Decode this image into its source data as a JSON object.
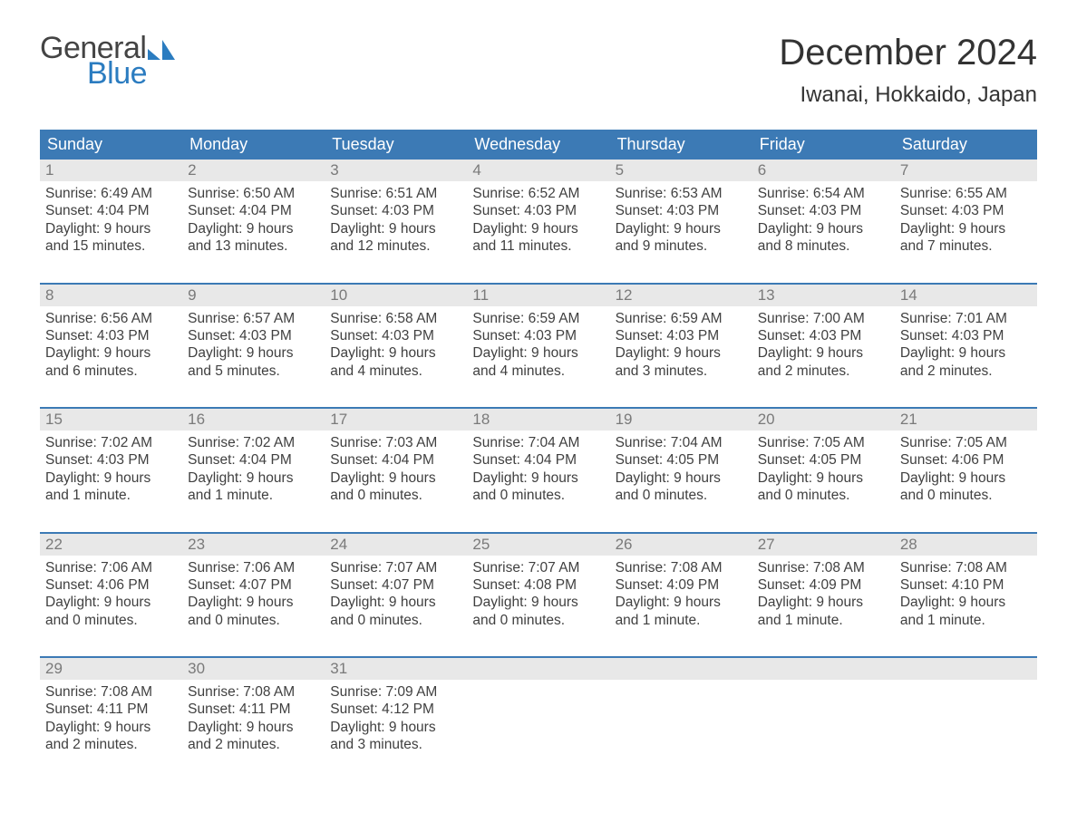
{
  "brand": {
    "word1": "General",
    "word2": "Blue",
    "shape_color": "#2b7cc0",
    "text_gray": "#444444"
  },
  "title": "December 2024",
  "location": "Iwanai, Hokkaido, Japan",
  "colors": {
    "header_bg": "#3c7ab5",
    "daynum_bg": "#e8e8e8",
    "daynum_text": "#7a7a7a",
    "body_text": "#404040",
    "week_border": "#3c7ab5"
  },
  "weekdays": [
    "Sunday",
    "Monday",
    "Tuesday",
    "Wednesday",
    "Thursday",
    "Friday",
    "Saturday"
  ],
  "weeks": [
    [
      {
        "num": "1",
        "sunrise": "Sunrise: 6:49 AM",
        "sunset": "Sunset: 4:04 PM",
        "day1": "Daylight: 9 hours",
        "day2": "and 15 minutes."
      },
      {
        "num": "2",
        "sunrise": "Sunrise: 6:50 AM",
        "sunset": "Sunset: 4:04 PM",
        "day1": "Daylight: 9 hours",
        "day2": "and 13 minutes."
      },
      {
        "num": "3",
        "sunrise": "Sunrise: 6:51 AM",
        "sunset": "Sunset: 4:03 PM",
        "day1": "Daylight: 9 hours",
        "day2": "and 12 minutes."
      },
      {
        "num": "4",
        "sunrise": "Sunrise: 6:52 AM",
        "sunset": "Sunset: 4:03 PM",
        "day1": "Daylight: 9 hours",
        "day2": "and 11 minutes."
      },
      {
        "num": "5",
        "sunrise": "Sunrise: 6:53 AM",
        "sunset": "Sunset: 4:03 PM",
        "day1": "Daylight: 9 hours",
        "day2": "and 9 minutes."
      },
      {
        "num": "6",
        "sunrise": "Sunrise: 6:54 AM",
        "sunset": "Sunset: 4:03 PM",
        "day1": "Daylight: 9 hours",
        "day2": "and 8 minutes."
      },
      {
        "num": "7",
        "sunrise": "Sunrise: 6:55 AM",
        "sunset": "Sunset: 4:03 PM",
        "day1": "Daylight: 9 hours",
        "day2": "and 7 minutes."
      }
    ],
    [
      {
        "num": "8",
        "sunrise": "Sunrise: 6:56 AM",
        "sunset": "Sunset: 4:03 PM",
        "day1": "Daylight: 9 hours",
        "day2": "and 6 minutes."
      },
      {
        "num": "9",
        "sunrise": "Sunrise: 6:57 AM",
        "sunset": "Sunset: 4:03 PM",
        "day1": "Daylight: 9 hours",
        "day2": "and 5 minutes."
      },
      {
        "num": "10",
        "sunrise": "Sunrise: 6:58 AM",
        "sunset": "Sunset: 4:03 PM",
        "day1": "Daylight: 9 hours",
        "day2": "and 4 minutes."
      },
      {
        "num": "11",
        "sunrise": "Sunrise: 6:59 AM",
        "sunset": "Sunset: 4:03 PM",
        "day1": "Daylight: 9 hours",
        "day2": "and 4 minutes."
      },
      {
        "num": "12",
        "sunrise": "Sunrise: 6:59 AM",
        "sunset": "Sunset: 4:03 PM",
        "day1": "Daylight: 9 hours",
        "day2": "and 3 minutes."
      },
      {
        "num": "13",
        "sunrise": "Sunrise: 7:00 AM",
        "sunset": "Sunset: 4:03 PM",
        "day1": "Daylight: 9 hours",
        "day2": "and 2 minutes."
      },
      {
        "num": "14",
        "sunrise": "Sunrise: 7:01 AM",
        "sunset": "Sunset: 4:03 PM",
        "day1": "Daylight: 9 hours",
        "day2": "and 2 minutes."
      }
    ],
    [
      {
        "num": "15",
        "sunrise": "Sunrise: 7:02 AM",
        "sunset": "Sunset: 4:03 PM",
        "day1": "Daylight: 9 hours",
        "day2": "and 1 minute."
      },
      {
        "num": "16",
        "sunrise": "Sunrise: 7:02 AM",
        "sunset": "Sunset: 4:04 PM",
        "day1": "Daylight: 9 hours",
        "day2": "and 1 minute."
      },
      {
        "num": "17",
        "sunrise": "Sunrise: 7:03 AM",
        "sunset": "Sunset: 4:04 PM",
        "day1": "Daylight: 9 hours",
        "day2": "and 0 minutes."
      },
      {
        "num": "18",
        "sunrise": "Sunrise: 7:04 AM",
        "sunset": "Sunset: 4:04 PM",
        "day1": "Daylight: 9 hours",
        "day2": "and 0 minutes."
      },
      {
        "num": "19",
        "sunrise": "Sunrise: 7:04 AM",
        "sunset": "Sunset: 4:05 PM",
        "day1": "Daylight: 9 hours",
        "day2": "and 0 minutes."
      },
      {
        "num": "20",
        "sunrise": "Sunrise: 7:05 AM",
        "sunset": "Sunset: 4:05 PM",
        "day1": "Daylight: 9 hours",
        "day2": "and 0 minutes."
      },
      {
        "num": "21",
        "sunrise": "Sunrise: 7:05 AM",
        "sunset": "Sunset: 4:06 PM",
        "day1": "Daylight: 9 hours",
        "day2": "and 0 minutes."
      }
    ],
    [
      {
        "num": "22",
        "sunrise": "Sunrise: 7:06 AM",
        "sunset": "Sunset: 4:06 PM",
        "day1": "Daylight: 9 hours",
        "day2": "and 0 minutes."
      },
      {
        "num": "23",
        "sunrise": "Sunrise: 7:06 AM",
        "sunset": "Sunset: 4:07 PM",
        "day1": "Daylight: 9 hours",
        "day2": "and 0 minutes."
      },
      {
        "num": "24",
        "sunrise": "Sunrise: 7:07 AM",
        "sunset": "Sunset: 4:07 PM",
        "day1": "Daylight: 9 hours",
        "day2": "and 0 minutes."
      },
      {
        "num": "25",
        "sunrise": "Sunrise: 7:07 AM",
        "sunset": "Sunset: 4:08 PM",
        "day1": "Daylight: 9 hours",
        "day2": "and 0 minutes."
      },
      {
        "num": "26",
        "sunrise": "Sunrise: 7:08 AM",
        "sunset": "Sunset: 4:09 PM",
        "day1": "Daylight: 9 hours",
        "day2": "and 1 minute."
      },
      {
        "num": "27",
        "sunrise": "Sunrise: 7:08 AM",
        "sunset": "Sunset: 4:09 PM",
        "day1": "Daylight: 9 hours",
        "day2": "and 1 minute."
      },
      {
        "num": "28",
        "sunrise": "Sunrise: 7:08 AM",
        "sunset": "Sunset: 4:10 PM",
        "day1": "Daylight: 9 hours",
        "day2": "and 1 minute."
      }
    ],
    [
      {
        "num": "29",
        "sunrise": "Sunrise: 7:08 AM",
        "sunset": "Sunset: 4:11 PM",
        "day1": "Daylight: 9 hours",
        "day2": "and 2 minutes."
      },
      {
        "num": "30",
        "sunrise": "Sunrise: 7:08 AM",
        "sunset": "Sunset: 4:11 PM",
        "day1": "Daylight: 9 hours",
        "day2": "and 2 minutes."
      },
      {
        "num": "31",
        "sunrise": "Sunrise: 7:09 AM",
        "sunset": "Sunset: 4:12 PM",
        "day1": "Daylight: 9 hours",
        "day2": "and 3 minutes."
      },
      null,
      null,
      null,
      null
    ]
  ]
}
